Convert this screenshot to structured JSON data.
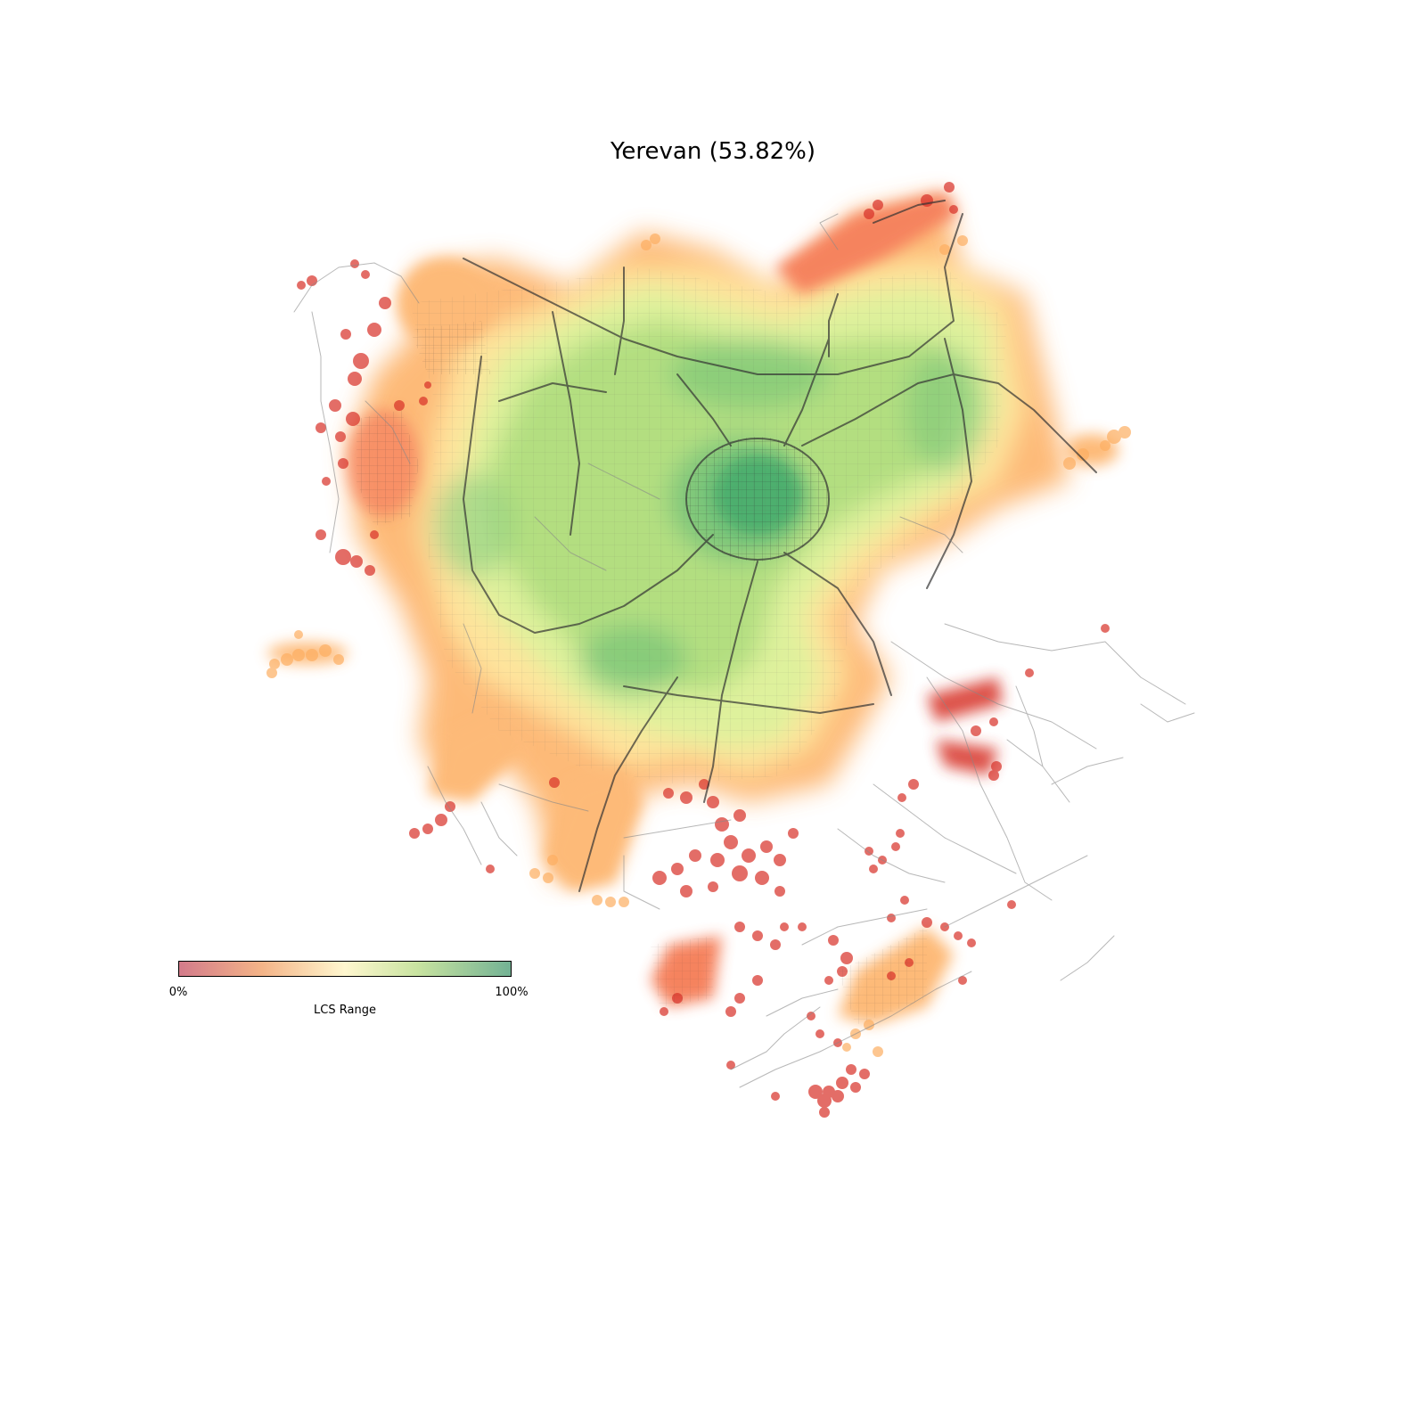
{
  "map": {
    "title": "Yerevan (53.82%)",
    "colorbar": {
      "min_label": "0%",
      "max_label": "100%",
      "label": "LCS Range",
      "colors": [
        "#d37b8a",
        "#f4b488",
        "#fff7cf",
        "#c8e3a0",
        "#73b294"
      ]
    },
    "palette": {
      "low": "#d73027",
      "mid_low": "#f46d43",
      "mid": "#fdae61",
      "neutral": "#fee08b",
      "mid_high": "#d9ef8b",
      "high": "#a6d96a",
      "very_high": "#66bd63",
      "max": "#1a9850",
      "roads": "#555555"
    }
  }
}
